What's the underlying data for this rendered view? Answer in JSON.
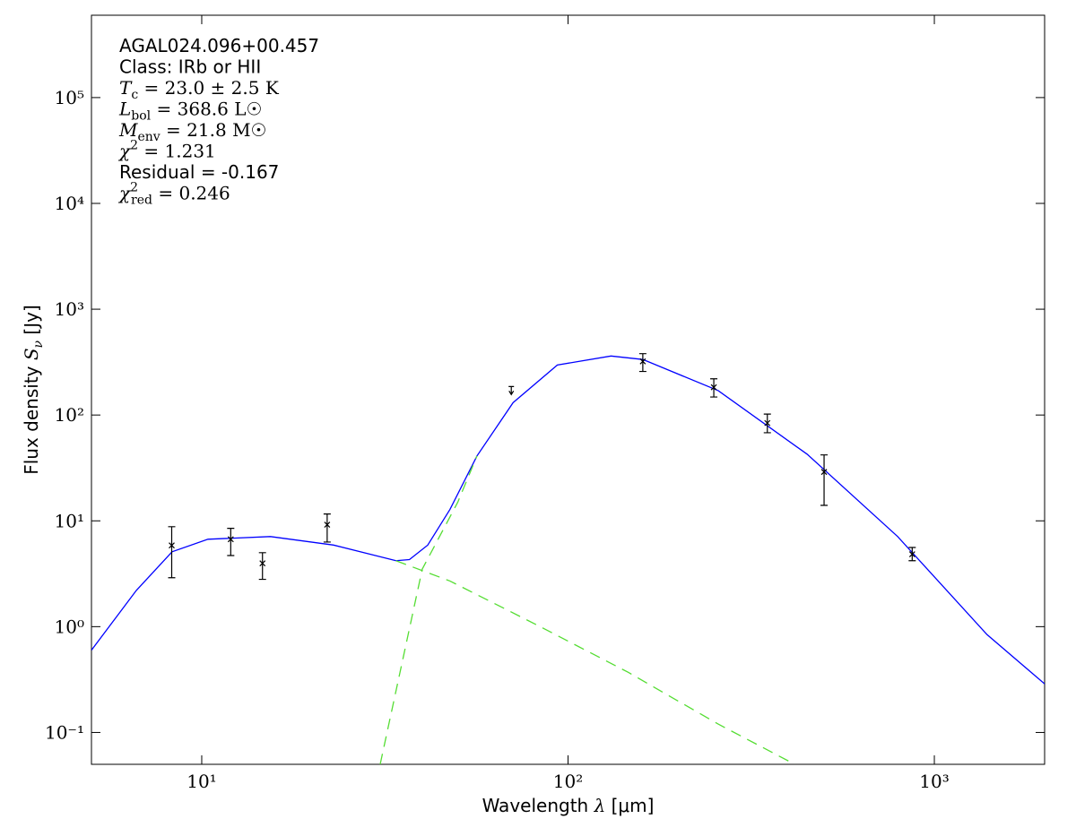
{
  "chart_data": {
    "type": "line",
    "xscale": "log",
    "yscale": "log",
    "xlabel": {
      "text": "Wavelength ",
      "symbol": "λ",
      "rest": " [μm]"
    },
    "ylabel": {
      "text": "Flux density ",
      "symbol": "S",
      "sub": "ν",
      "rest": " [Jy]"
    },
    "xlim": [
      5,
      2000
    ],
    "ylim": [
      0.05,
      600000
    ],
    "xticks": [
      {
        "value": 10,
        "label": "10¹"
      },
      {
        "value": 100,
        "label": "10²"
      },
      {
        "value": 1000,
        "label": "10³"
      }
    ],
    "yticks": [
      {
        "value": 0.1,
        "label": "10⁻¹"
      },
      {
        "value": 1,
        "label": "10⁰"
      },
      {
        "value": 10,
        "label": "10¹"
      },
      {
        "value": 100,
        "label": "10²"
      },
      {
        "value": 1000,
        "label": "10³"
      },
      {
        "value": 10000,
        "label": "10⁴"
      },
      {
        "value": 100000,
        "label": "10⁵"
      }
    ],
    "annotations": [
      "AGAL024.096+00.457",
      "Class: IRb or HII",
      {
        "main": "T",
        "sub": "c",
        "rest": " = 23.0 ± 2.5 K"
      },
      {
        "main": "L",
        "sub": "bol",
        "rest": " = 368.6 L☉"
      },
      {
        "main": "M",
        "sub": "env",
        "rest": " = 21.8 M☉"
      },
      {
        "main": "χ",
        "sup": "2",
        "rest": " = 1.231"
      },
      "Residual = -0.167",
      {
        "main": "χ",
        "sup": "2",
        "sub": "red",
        "rest": " = 0.246"
      }
    ],
    "series": [
      {
        "kind": "line",
        "color": "#0000ff",
        "dashed": false,
        "x": [
          5,
          6.63,
          8.3,
          10.4,
          15.4,
          22.9,
          33.9,
          36.9,
          41.4,
          47.6,
          56.4,
          70.8,
          93.5,
          131,
          160,
          257,
          450,
          794,
          1393,
          2000
        ],
        "values": [
          0.6,
          2.2,
          5.1,
          6.7,
          7.1,
          5.9,
          4.2,
          4.3,
          5.9,
          12.8,
          41,
          131,
          297,
          361,
          335,
          170,
          42.5,
          7.1,
          0.84,
          0.288
        ]
      },
      {
        "kind": "line",
        "color": "#55dd33",
        "dashed": true,
        "x": [
          33.9,
          47.6,
          83,
          146,
          257,
          416
        ],
        "values": [
          4.2,
          2.7,
          1.02,
          0.37,
          0.12,
          0.05
        ]
      },
      {
        "kind": "line",
        "color": "#55dd33",
        "dashed": true,
        "x": [
          30.7,
          40,
          50,
          56.4
        ],
        "values": [
          0.05,
          3.5,
          15,
          41
        ]
      },
      {
        "kind": "errorbar",
        "color": "#000000",
        "x": [
          8.28,
          12,
          14.65,
          22,
          160,
          250,
          350,
          500,
          870
        ],
        "values": [
          5.86,
          6.7,
          3.97,
          9.2,
          321,
          183,
          84,
          29,
          4.83
        ],
        "error_lower": [
          2.9,
          4.7,
          2.8,
          6.3,
          258,
          148,
          68,
          14,
          4.2
        ],
        "error_upper": [
          8.8,
          8.5,
          5.0,
          11.6,
          380,
          220,
          102,
          42,
          5.6
        ]
      },
      {
        "kind": "upper_limit",
        "color": "#000000",
        "x": [
          70
        ],
        "values": [
          186
        ]
      }
    ]
  }
}
